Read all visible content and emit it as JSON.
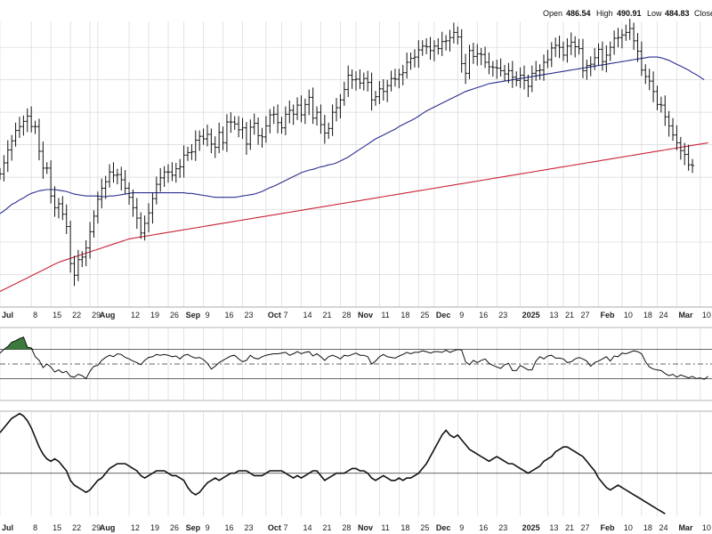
{
  "header": {
    "open_label": "Open",
    "open_value": "486.54",
    "high_label": "High",
    "high_value": "490.91",
    "low_label": "Low",
    "low_value": "484.83",
    "close_label": "Close"
  },
  "colors": {
    "price_bar": "#111111",
    "ma_short": "#2b2f8f",
    "ma_long": "#c8243a",
    "grid": "#d8d8d8",
    "indicator_line": "#111111",
    "overbought_fill": "#3d7a3d",
    "reference_line": "#333333"
  },
  "chart_data": [
    {
      "type": "ohlc",
      "x_tick_labels": [
        {
          "label": "Jul",
          "x": 0,
          "bold": true
        },
        {
          "label": "8",
          "x": 8
        },
        {
          "label": "15",
          "x": 13
        },
        {
          "label": "22",
          "x": 18
        },
        {
          "label": "29",
          "x": 23
        },
        {
          "label": "Aug",
          "x": 25,
          "bold": true
        },
        {
          "label": "12",
          "x": 33
        },
        {
          "label": "19",
          "x": 38
        },
        {
          "label": "26",
          "x": 43
        },
        {
          "label": "Sep",
          "x": 47,
          "bold": true
        },
        {
          "label": "9",
          "x": 52
        },
        {
          "label": "16",
          "x": 57
        },
        {
          "label": "23",
          "x": 62
        },
        {
          "label": "Oct",
          "x": 68,
          "bold": true
        },
        {
          "label": "7",
          "x": 72
        },
        {
          "label": "14",
          "x": 77
        },
        {
          "label": "21",
          "x": 82
        },
        {
          "label": "28",
          "x": 87
        },
        {
          "label": "Nov",
          "x": 91,
          "bold": true
        },
        {
          "label": "11",
          "x": 97
        },
        {
          "label": "18",
          "x": 102
        },
        {
          "label": "25",
          "x": 107
        },
        {
          "label": "Dec",
          "x": 111,
          "bold": true
        },
        {
          "label": "9",
          "x": 117
        },
        {
          "label": "16",
          "x": 122
        },
        {
          "label": "23",
          "x": 127
        },
        {
          "label": "2025",
          "x": 133,
          "bold": true
        },
        {
          "label": "13",
          "x": 140
        },
        {
          "label": "21",
          "x": 144
        },
        {
          "label": "27",
          "x": 148
        },
        {
          "label": "Feb",
          "x": 153,
          "bold": true
        },
        {
          "label": "10",
          "x": 159
        },
        {
          "label": "18",
          "x": 164
        },
        {
          "label": "24",
          "x": 168
        },
        {
          "label": "Mar",
          "x": 173,
          "bold": true
        },
        {
          "label": "10",
          "x": 179
        }
      ],
      "y_range": [
        470,
        514
      ],
      "series": [
        {
          "kind": "ohlc",
          "x_start": 0,
          "close": [
            490.5,
            492.2,
            494.2,
            495.6,
            497.2,
            497.8,
            498.6,
            499.4,
            497.8,
            497.8,
            494.0,
            491.4,
            491.4,
            487.1,
            485.3,
            485.9,
            484.3,
            482.4,
            476.7,
            474.9,
            477.3,
            477.7,
            479.1,
            481.6,
            484.0,
            486.6,
            488.3,
            489.3,
            490.8,
            490.3,
            490.4,
            489.6,
            488.3,
            486.9,
            485.3,
            483.7,
            481.4,
            482.9,
            484.5,
            486.7,
            488.9,
            489.9,
            490.8,
            490.8,
            490.3,
            491.3,
            491.6,
            493.4,
            493.8,
            493.9,
            495.7,
            496.3,
            495.9,
            496.6,
            495.1,
            494.6,
            496.9,
            495.3,
            498.5,
            498.5,
            498.2,
            497.3,
            497.6,
            495.1,
            497.7,
            498.3,
            496.4,
            496.2,
            497.9,
            499.6,
            499.7,
            498.4,
            497.6,
            499.7,
            500.3,
            499.7,
            501.1,
            499.6,
            501.2,
            502.3,
            499.1,
            500.0,
            498.1,
            496.8,
            497.5,
            500.0,
            500.7,
            501.9,
            503.5,
            505.7,
            505.0,
            505.1,
            504.5,
            505.2,
            504.6,
            501.9,
            502.4,
            503.6,
            503.2,
            504.1,
            505.2,
            505.1,
            505.8,
            506.1,
            507.7,
            508.3,
            508.5,
            509.6,
            510.2,
            510.1,
            509.5,
            510.2,
            509.8,
            510.9,
            511.0,
            511.5,
            512.3,
            511.6,
            507.5,
            506.0,
            509.5,
            508.6,
            509.0,
            508.9,
            507.7,
            507.0,
            506.9,
            506.8,
            506.4,
            505.9,
            506.4,
            505.4,
            504.9,
            505.7,
            504.9,
            504.0,
            506.0,
            506.4,
            506.5,
            507.7,
            508.1,
            509.9,
            510.3,
            510.0,
            508.8,
            510.2,
            510.8,
            510.1,
            509.8,
            506.4,
            507.2,
            507.4,
            508.4,
            509.7,
            507.8,
            508.8,
            510.0,
            511.4,
            511.5,
            511.9,
            512.3,
            512.9,
            511.0,
            509.4,
            506.5,
            505.5,
            504.8,
            503.2,
            501.2,
            501.1,
            499.3,
            497.9,
            496.5,
            495.3,
            494.1,
            493.5,
            491.9,
            491.8
          ],
          "source_note": "closing prices estimated from chart shape; axis scale not printed"
        }
      ],
      "moving_average_short": {
        "x_start": 0,
        "values": [
          484.4,
          484.8,
          485.3,
          485.8,
          486.1,
          486.5,
          486.8,
          487.2,
          487.5,
          487.7,
          487.9,
          488.0,
          488.1,
          488.1,
          488.1,
          488.0,
          487.9,
          487.8,
          487.6,
          487.4,
          487.3,
          487.2,
          487.1,
          487.1,
          487.1,
          487.1,
          487.0,
          487.0,
          487.1,
          487.1,
          487.2,
          487.3,
          487.4,
          487.5,
          487.6,
          487.6,
          487.6,
          487.6,
          487.6,
          487.6,
          487.6,
          487.6,
          487.6,
          487.6,
          487.6,
          487.6,
          487.6,
          487.6,
          487.5,
          487.5,
          487.4,
          487.3,
          487.2,
          487.1,
          487.0,
          486.9,
          486.9,
          486.9,
          486.9,
          486.9,
          486.9,
          487.0,
          487.1,
          487.2,
          487.3,
          487.4,
          487.6,
          487.8,
          488.1,
          488.4,
          488.6,
          488.9,
          489.2,
          489.5,
          489.8,
          490.1,
          490.4,
          490.7,
          490.9,
          491.1,
          491.2,
          491.4,
          491.6,
          491.7,
          491.9,
          492.0,
          492.2,
          492.5,
          492.8,
          493.1,
          493.5,
          493.9,
          494.3,
          494.7,
          495.1,
          495.5,
          495.9,
          496.2,
          496.5,
          496.8,
          497.1,
          497.4,
          497.8,
          498.1,
          498.4,
          498.7,
          499.0,
          499.4,
          499.8,
          500.2,
          500.5,
          500.8,
          501.1,
          501.4,
          501.7,
          502.0,
          502.3,
          502.6,
          502.9,
          503.2,
          503.4,
          503.6,
          503.8,
          504.0,
          504.2,
          504.4,
          504.5,
          504.6,
          504.7,
          504.8,
          504.9,
          505.0,
          505.1,
          505.2,
          505.3,
          505.4,
          505.5,
          505.6,
          505.7,
          505.8,
          505.9,
          506.0,
          506.1,
          506.2,
          506.3,
          506.4,
          506.5,
          506.6,
          506.7,
          506.8,
          506.9,
          507.0,
          507.1,
          507.2,
          507.3,
          507.4,
          507.5,
          507.6,
          507.7,
          507.8,
          507.9,
          508.0,
          508.1,
          508.2,
          508.3,
          508.4,
          508.5,
          508.5,
          508.5,
          508.4,
          508.2,
          508.0,
          507.7,
          507.4,
          507.1,
          506.8,
          506.5,
          506.1,
          505.8,
          505.4,
          505.0
        ]
      },
      "moving_average_long": {
        "x_start": 0,
        "values": [
          472.4,
          472.7,
          473.0,
          473.3,
          473.6,
          473.9,
          474.2,
          474.5,
          474.8,
          475.1,
          475.4,
          475.7,
          476.0,
          476.3,
          476.6,
          476.9,
          477.1,
          477.3,
          477.5,
          477.7,
          477.9,
          478.1,
          478.3,
          478.5,
          478.7,
          478.9,
          479.1,
          479.3,
          479.5,
          479.7,
          479.9,
          480.1,
          480.3,
          480.5,
          480.6,
          480.7,
          480.8,
          480.9,
          481.0,
          481.1,
          481.2,
          481.3,
          481.4,
          481.5,
          481.6,
          481.7,
          481.8,
          481.9,
          482.0,
          482.1,
          482.2,
          482.3,
          482.4,
          482.5,
          482.6,
          482.7,
          482.8,
          482.9,
          483.0,
          483.1,
          483.2,
          483.3,
          483.4,
          483.5,
          483.6,
          483.7,
          483.8,
          483.9,
          484.0,
          484.1,
          484.2,
          484.3,
          484.4,
          484.5,
          484.6,
          484.7,
          484.8,
          484.9,
          485.0,
          485.1,
          485.2,
          485.3,
          485.4,
          485.5,
          485.6,
          485.7,
          485.8,
          485.9,
          486.0,
          486.1,
          486.2,
          486.3,
          486.4,
          486.5,
          486.6,
          486.7,
          486.8,
          486.9,
          487.0,
          487.1,
          487.2,
          487.3,
          487.4,
          487.5,
          487.6,
          487.7,
          487.8,
          487.9,
          488.0,
          488.1,
          488.2,
          488.3,
          488.4,
          488.5,
          488.6,
          488.7,
          488.8,
          488.9,
          489.0,
          489.1,
          489.2,
          489.3,
          489.4,
          489.5,
          489.6,
          489.7,
          489.8,
          489.9,
          490.0,
          490.1,
          490.2,
          490.3,
          490.4,
          490.5,
          490.6,
          490.7,
          490.8,
          490.9,
          491.0,
          491.1,
          491.2,
          491.3,
          491.4,
          491.5,
          491.6,
          491.7,
          491.8,
          491.9,
          492.0,
          492.1,
          492.2,
          492.3,
          492.4,
          492.5,
          492.6,
          492.7,
          492.8,
          492.9,
          493.0,
          493.1,
          493.2,
          493.3,
          493.4,
          493.5,
          493.6,
          493.7,
          493.8,
          493.9,
          494.0,
          494.1,
          494.2,
          494.3,
          494.4,
          494.5,
          494.6,
          494.7,
          494.8,
          494.9,
          495.0,
          495.1,
          495.2,
          495.3
        ]
      },
      "x_range": [
        0,
        182
      ],
      "grid": true
    },
    {
      "type": "line",
      "panel": "indicator_1",
      "y_range": [
        0,
        100
      ],
      "reference_lines": [
        70,
        50,
        30
      ],
      "x_start": 0,
      "values": [
        65,
        70,
        74,
        80,
        82,
        85,
        87,
        73,
        72,
        60,
        55,
        45,
        50,
        46,
        39,
        42,
        38,
        40,
        33,
        32,
        36,
        34,
        30,
        40,
        47,
        48,
        55,
        59,
        62,
        60,
        64,
        63,
        59,
        57,
        54,
        52,
        49,
        55,
        59,
        60,
        63,
        62,
        63,
        62,
        60,
        61,
        57,
        62,
        63,
        60,
        58,
        59,
        56,
        51,
        43,
        47,
        52,
        55,
        58,
        61,
        62,
        57,
        53,
        55,
        62,
        58,
        57,
        60,
        62,
        63,
        64,
        64,
        65,
        66,
        62,
        64,
        67,
        64,
        66,
        67,
        61,
        64,
        60,
        55,
        60,
        62,
        60,
        57,
        62,
        61,
        63,
        65,
        62,
        62,
        60,
        50,
        54,
        60,
        63,
        60,
        59,
        58,
        61,
        63,
        66,
        64,
        66,
        66,
        68,
        67,
        65,
        67,
        67,
        66,
        69,
        66,
        68,
        70,
        69,
        53,
        49,
        55,
        52,
        55,
        57,
        51,
        48,
        46,
        44,
        49,
        51,
        41,
        41,
        48,
        45,
        42,
        42,
        54,
        60,
        57,
        61,
        62,
        58,
        58,
        57,
        52,
        53,
        57,
        59,
        57,
        54,
        47,
        52,
        54,
        57,
        60,
        54,
        61,
        60,
        65,
        64,
        66,
        68,
        67,
        64,
        53,
        46,
        43,
        42,
        41,
        37,
        34,
        36,
        32,
        35,
        33,
        31,
        33,
        30,
        31,
        29,
        33
      ]
    },
    {
      "type": "line",
      "panel": "indicator_2",
      "y_range": [
        -1.8,
        2.6
      ],
      "reference_lines": [
        0
      ],
      "x_start": 0,
      "values": [
        1.7,
        1.9,
        2.1,
        2.3,
        2.4,
        2.5,
        2.4,
        2.2,
        1.9,
        1.5,
        1.1,
        0.8,
        0.6,
        0.5,
        0.6,
        0.5,
        0.3,
        0.1,
        -0.3,
        -0.5,
        -0.6,
        -0.7,
        -0.8,
        -0.7,
        -0.5,
        -0.3,
        -0.2,
        0.0,
        0.2,
        0.3,
        0.4,
        0.4,
        0.4,
        0.3,
        0.2,
        0.1,
        -0.1,
        -0.2,
        -0.1,
        0.0,
        0.1,
        0.1,
        0.1,
        0.0,
        -0.1,
        -0.1,
        -0.2,
        -0.3,
        -0.6,
        -0.8,
        -0.9,
        -0.8,
        -0.6,
        -0.4,
        -0.3,
        -0.2,
        -0.3,
        -0.2,
        -0.1,
        0.0,
        0.0,
        0.1,
        0.1,
        0.1,
        0.0,
        -0.1,
        -0.1,
        -0.1,
        0.0,
        0.1,
        0.1,
        0.1,
        0.1,
        0.0,
        -0.1,
        -0.2,
        -0.1,
        -0.2,
        -0.1,
        0.0,
        0.1,
        0.1,
        -0.1,
        -0.3,
        -0.2,
        -0.1,
        0.0,
        0.0,
        0.0,
        0.1,
        0.2,
        0.2,
        0.1,
        0.1,
        0.0,
        -0.2,
        -0.3,
        -0.2,
        -0.1,
        -0.2,
        -0.3,
        -0.3,
        -0.2,
        -0.3,
        -0.2,
        -0.2,
        -0.1,
        0.0,
        0.2,
        0.4,
        0.7,
        1.0,
        1.3,
        1.6,
        1.8,
        1.6,
        1.5,
        1.6,
        1.4,
        1.2,
        1.0,
        0.9,
        0.8,
        0.7,
        0.6,
        0.5,
        0.6,
        0.7,
        0.6,
        0.5,
        0.4,
        0.4,
        0.3,
        0.2,
        0.1,
        0.0,
        0.1,
        0.2,
        0.3,
        0.5,
        0.6,
        0.7,
        0.9,
        1.0,
        1.1,
        1.1,
        1.0,
        0.9,
        0.8,
        0.7,
        0.5,
        0.3,
        0.1,
        -0.2,
        -0.4,
        -0.6,
        -0.7,
        -0.6,
        -0.5,
        -0.6,
        -0.7,
        -0.8,
        -0.9,
        -1.0,
        -1.1,
        -1.2,
        -1.3,
        -1.4,
        -1.5,
        -1.6,
        -1.7
      ]
    }
  ]
}
